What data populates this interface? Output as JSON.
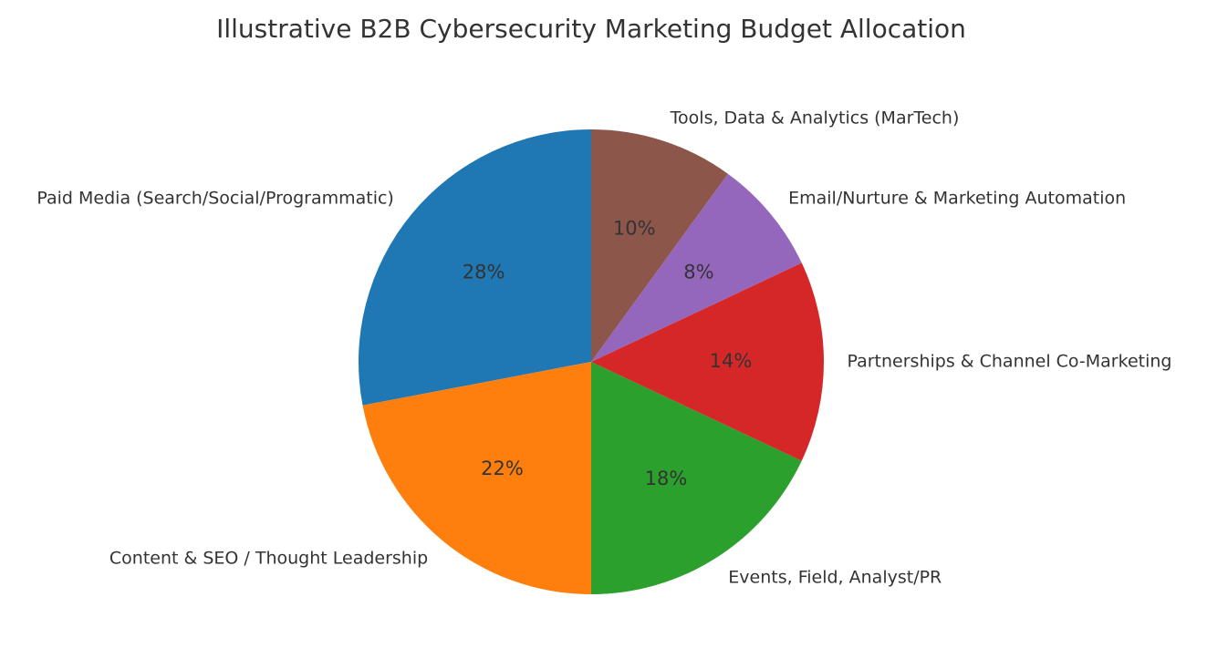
{
  "chart_data": {
    "type": "pie",
    "title": "Illustrative B2B Cybersecurity Marketing Budget Allocation",
    "start_angle_deg": 90,
    "direction": "counterclockwise",
    "slices": [
      {
        "label": "Paid Media (Search/Social/Programmatic)",
        "value": 28,
        "pct_label": "28%",
        "color": "#1f77b4"
      },
      {
        "label": "Content & SEO / Thought Leadership",
        "value": 22,
        "pct_label": "22%",
        "color": "#ff7f0e"
      },
      {
        "label": "Events, Field, Analyst/PR",
        "value": 18,
        "pct_label": "18%",
        "color": "#2ca02c"
      },
      {
        "label": "Partnerships & Channel Co-Marketing",
        "value": 14,
        "pct_label": "14%",
        "color": "#d62728"
      },
      {
        "label": "Email/Nurture & Marketing Automation",
        "value": 8,
        "pct_label": "8%",
        "color": "#9467bd"
      },
      {
        "label": "Tools, Data & Analytics (MarTech)",
        "value": 10,
        "pct_label": "10%",
        "color": "#8c564b"
      }
    ]
  }
}
